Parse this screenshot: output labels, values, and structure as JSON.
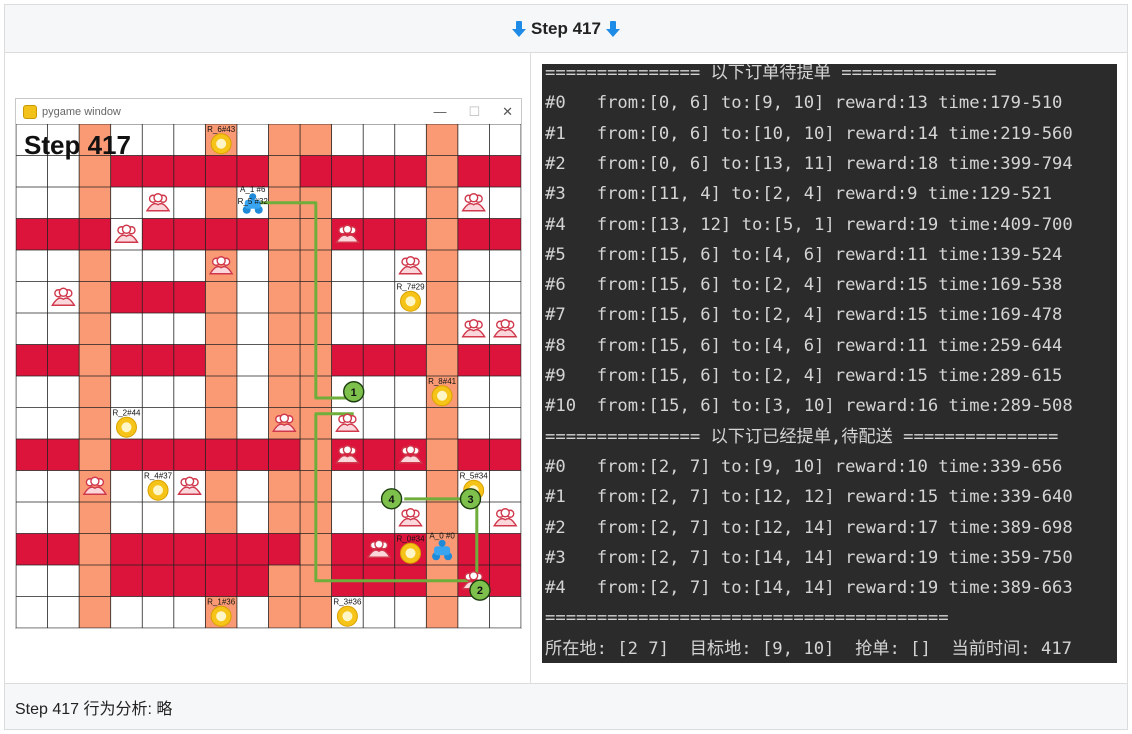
{
  "header": {
    "title": "Step 417"
  },
  "game": {
    "window_title": "pygame window",
    "step_label": "Step 417",
    "cols": 16,
    "rows": 16,
    "red_cells": [
      [
        3,
        0
      ],
      [
        4,
        0
      ],
      [
        5,
        0
      ],
      [
        6,
        0
      ],
      [
        7,
        0
      ],
      [
        9,
        0
      ],
      [
        10,
        0
      ],
      [
        11,
        0
      ],
      [
        12,
        0
      ],
      [
        14,
        0
      ],
      [
        15,
        0
      ],
      [
        0,
        1
      ],
      [
        5,
        1
      ],
      [
        6,
        1
      ],
      [
        9,
        1
      ],
      [
        10,
        1
      ],
      [
        11,
        1
      ],
      [
        14,
        1
      ],
      [
        15,
        1
      ],
      [
        0,
        2
      ],
      [
        1,
        2
      ],
      [
        3,
        2
      ],
      [
        4,
        2
      ],
      [
        5,
        2
      ],
      [
        6,
        2
      ],
      [
        9,
        2
      ],
      [
        10,
        2
      ],
      [
        11,
        2
      ],
      [
        12,
        2
      ],
      [
        14,
        2
      ],
      [
        15,
        2
      ],
      [
        0,
        3
      ],
      [
        1,
        3
      ],
      [
        2,
        3
      ],
      [
        3,
        3
      ],
      [
        5,
        3
      ],
      [
        6,
        3
      ],
      [
        11,
        3
      ],
      [
        12,
        3
      ],
      [
        14,
        3
      ],
      [
        15,
        3
      ],
      [
        0,
        4
      ],
      [
        1,
        4
      ],
      [
        2,
        4
      ],
      [
        3,
        4
      ],
      [
        5,
        4
      ],
      [
        6,
        4
      ],
      [
        8,
        4
      ],
      [
        9,
        4
      ],
      [
        10,
        4
      ],
      [
        11,
        4
      ],
      [
        12,
        4
      ],
      [
        14,
        4
      ],
      [
        15,
        4
      ]
    ],
    "red_cells_fixed": [
      [
        3,
        1
      ],
      [
        4,
        1
      ],
      [
        5,
        1
      ],
      [
        6,
        1
      ],
      [
        7,
        1
      ],
      [
        9,
        1
      ],
      [
        10,
        1
      ],
      [
        11,
        1
      ],
      [
        12,
        1
      ],
      [
        14,
        1
      ],
      [
        15,
        1
      ],
      [
        0,
        3
      ],
      [
        1,
        3
      ],
      [
        2,
        3
      ],
      [
        4,
        3
      ],
      [
        5,
        3
      ],
      [
        6,
        3
      ],
      [
        7,
        3
      ],
      [
        10,
        3
      ],
      [
        11,
        3
      ],
      [
        12,
        3
      ],
      [
        14,
        3
      ],
      [
        15,
        3
      ],
      [
        3,
        5
      ],
      [
        4,
        5
      ],
      [
        5,
        5
      ],
      [
        0,
        7
      ],
      [
        1,
        7
      ],
      [
        3,
        7
      ],
      [
        4,
        7
      ],
      [
        5,
        7
      ],
      [
        10,
        7
      ],
      [
        11,
        7
      ],
      [
        12,
        7
      ],
      [
        14,
        7
      ],
      [
        15,
        7
      ],
      [
        0,
        10
      ],
      [
        1,
        10
      ],
      [
        3,
        10
      ],
      [
        4,
        10
      ],
      [
        5,
        10
      ],
      [
        6,
        10
      ],
      [
        7,
        10
      ],
      [
        8,
        10
      ],
      [
        10,
        10
      ],
      [
        11,
        10
      ],
      [
        12,
        10
      ],
      [
        14,
        10
      ],
      [
        15,
        10
      ],
      [
        0,
        13
      ],
      [
        1,
        13
      ],
      [
        3,
        13
      ],
      [
        4,
        13
      ],
      [
        5,
        13
      ],
      [
        6,
        13
      ],
      [
        7,
        13
      ],
      [
        8,
        13
      ],
      [
        10,
        13
      ],
      [
        11,
        13
      ],
      [
        12,
        13
      ],
      [
        14,
        13
      ],
      [
        15,
        13
      ],
      [
        3,
        14
      ],
      [
        4,
        14
      ],
      [
        5,
        14
      ],
      [
        6,
        14
      ],
      [
        7,
        14
      ],
      [
        10,
        14
      ],
      [
        11,
        14
      ],
      [
        12,
        14
      ],
      [
        14,
        14
      ],
      [
        15,
        14
      ]
    ],
    "salmon_cols": [
      2,
      6,
      8,
      9,
      13
    ],
    "restaurants": [
      {
        "label": "R_6#43",
        "col": 6,
        "row": 0
      },
      {
        "label": "R_7#29",
        "col": 12,
        "row": 5
      },
      {
        "label": "R_8#41",
        "col": 13,
        "row": 8
      },
      {
        "label": "R_2#44",
        "col": 3,
        "row": 9
      },
      {
        "label": "R_4#37",
        "col": 4,
        "row": 11
      },
      {
        "label": "R_5#34",
        "col": 14,
        "row": 11
      },
      {
        "label": "R_0#34",
        "col": 12,
        "row": 13
      },
      {
        "label": "R_1#36",
        "col": 6,
        "row": 15
      },
      {
        "label": "R_3#36",
        "col": 10,
        "row": 15
      }
    ],
    "customers": [
      [
        4,
        2
      ],
      [
        14,
        2
      ],
      [
        3,
        3
      ],
      [
        10,
        3
      ],
      [
        6,
        4
      ],
      [
        12,
        4
      ],
      [
        1,
        5
      ],
      [
        14,
        6
      ],
      [
        15,
        6
      ],
      [
        8,
        9
      ],
      [
        10,
        9
      ],
      [
        10,
        10
      ],
      [
        12,
        10
      ],
      [
        2,
        11
      ],
      [
        5,
        11
      ],
      [
        12,
        12
      ],
      [
        15,
        12
      ],
      [
        11,
        13
      ],
      [
        14,
        14
      ]
    ],
    "agents": [
      {
        "label": "A_1 #6",
        "sub": "R_5 #32",
        "col": 7,
        "row": 2
      },
      {
        "label": "A_0 #0",
        "col": 13,
        "row": 13
      }
    ],
    "waypoints": [
      {
        "label": "1",
        "col": 10.7,
        "row": 8.5
      },
      {
        "label": "2",
        "col": 14.7,
        "row": 14.8
      },
      {
        "label": "3",
        "col": 14.4,
        "row": 11.9
      },
      {
        "label": "4",
        "col": 11.9,
        "row": 11.9
      }
    ]
  },
  "terminal": {
    "lines": [
      "=============== 以下订单待提单 ===============",
      "#0   from:[0, 6] to:[9, 10] reward:13 time:179-510",
      "#1   from:[0, 6] to:[10, 10] reward:14 time:219-560",
      "#2   from:[0, 6] to:[13, 11] reward:18 time:399-794",
      "#3   from:[11, 4] to:[2, 4] reward:9 time:129-521",
      "#4   from:[13, 12] to:[5, 1] reward:19 time:409-700",
      "#5   from:[15, 6] to:[4, 6] reward:11 time:139-524",
      "#6   from:[15, 6] to:[2, 4] reward:15 time:169-538",
      "#7   from:[15, 6] to:[2, 4] reward:15 time:169-478",
      "#8   from:[15, 6] to:[4, 6] reward:11 time:259-644",
      "#9   from:[15, 6] to:[2, 4] reward:15 time:289-615",
      "#10  from:[15, 6] to:[3, 10] reward:16 time:289-508",
      "=============== 以下订已经提单,待配送 ===============",
      "#0   from:[2, 7] to:[9, 10] reward:10 time:339-656",
      "#1   from:[2, 7] to:[12, 12] reward:15 time:339-640",
      "#2   from:[2, 7] to:[12, 14] reward:17 time:389-698",
      "#3   from:[2, 7] to:[14, 14] reward:19 time:359-750",
      "#4   from:[2, 7] to:[14, 14] reward:19 time:389-663",
      "=======================================",
      "所在地: [2 7]  目标地: [9, 10]  抢单: []  当前时间: 417"
    ]
  },
  "footer": {
    "text": "Step 417 行为分析:  略"
  },
  "colors": {
    "red": "#dc143c",
    "salmon": "#fa9a74",
    "path": "#6fae3a",
    "terminal_bg": "#2b2b2b"
  }
}
